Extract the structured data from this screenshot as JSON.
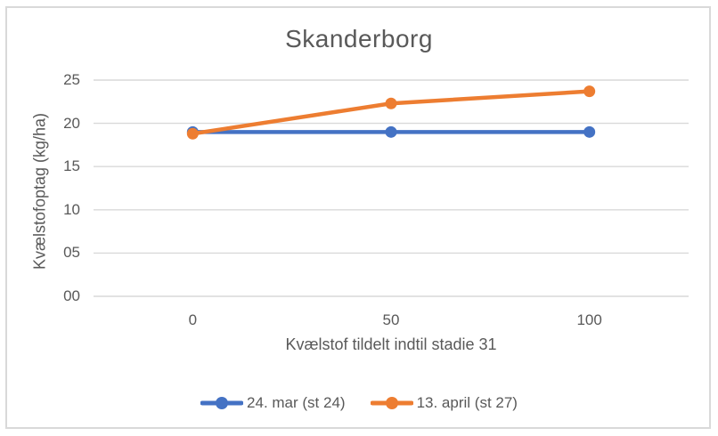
{
  "chart_data": {
    "type": "line",
    "title": "Skanderborg",
    "xlabel": "Kvælstof tildelt indtil stadie 31",
    "ylabel": "Kvælstofoptag (kg/ha)",
    "categories": [
      "0",
      "50",
      "100"
    ],
    "y_ticks": [
      0,
      5,
      10,
      15,
      20,
      25
    ],
    "y_tick_labels": [
      "00",
      "05",
      "10",
      "15",
      "20",
      "25"
    ],
    "ylim": [
      0,
      25
    ],
    "grid": true,
    "legend_position": "bottom",
    "series": [
      {
        "name": "24. mar (st 24)",
        "color": "#4472C4",
        "marker": "circle",
        "values": [
          19.0,
          19.0,
          19.0
        ]
      },
      {
        "name": "13. april (st 27)",
        "color": "#ED7D31",
        "marker": "circle",
        "values": [
          18.8,
          22.3,
          23.7
        ]
      }
    ]
  },
  "colors": {
    "background": "#FFFFFF",
    "border": "#D9D9D9",
    "gridline": "#D9D9D9",
    "text": "#595959",
    "series_blue": "#4472C4",
    "series_orange": "#ED7D31"
  }
}
